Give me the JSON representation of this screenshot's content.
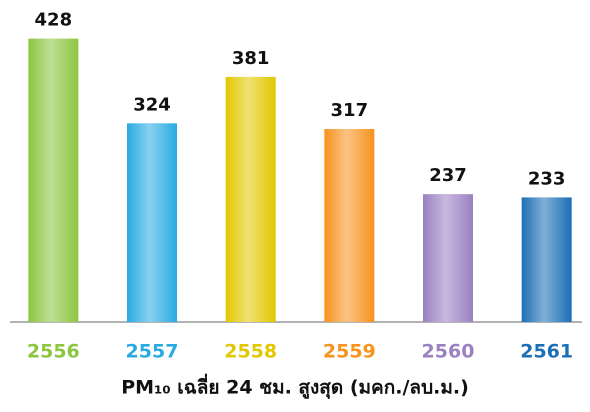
{
  "chart_data": {
    "type": "bar",
    "categories": [
      "2556",
      "2557",
      "2558",
      "2559",
      "2560",
      "2561"
    ],
    "values": [
      428,
      324,
      381,
      317,
      237,
      233
    ],
    "colors": [
      "#8cc63f",
      "#29abe2",
      "#e2c800",
      "#f7931e",
      "#9b80c2",
      "#1b6fb6"
    ],
    "x_label": "PM₁₀ เฉลี่ย 24 ชม. สูงสุด (มคก./ลบ.ม.)",
    "ylim": [
      80,
      430
    ]
  }
}
